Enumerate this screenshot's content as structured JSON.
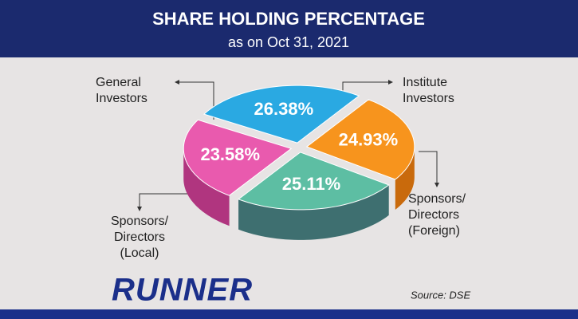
{
  "chart_data": {
    "type": "pie3d",
    "title": "SHARE HOLDING PERCENTAGE",
    "subtitle": "as on Oct 31, 2021",
    "categories": [
      "Institute\nInvestors",
      "Sponsors/\nDirectors\n(Foreign)",
      "Sponsors/\nDirectors\n(Local)",
      "General\nInvestors"
    ],
    "values": [
      26.38,
      24.93,
      25.11,
      23.58
    ],
    "value_labels": [
      "26.38%",
      "24.93%",
      "25.11%",
      "23.58%"
    ],
    "colors": [
      "#2aa9e2",
      "#f7941d",
      "#5dbea3",
      "#e95aae"
    ],
    "side_colors": [
      "#1a7fb0",
      "#c96a0c",
      "#3e6f70",
      "#b0357f"
    ],
    "logo": "RUNNER",
    "source": "Source: DSE"
  }
}
